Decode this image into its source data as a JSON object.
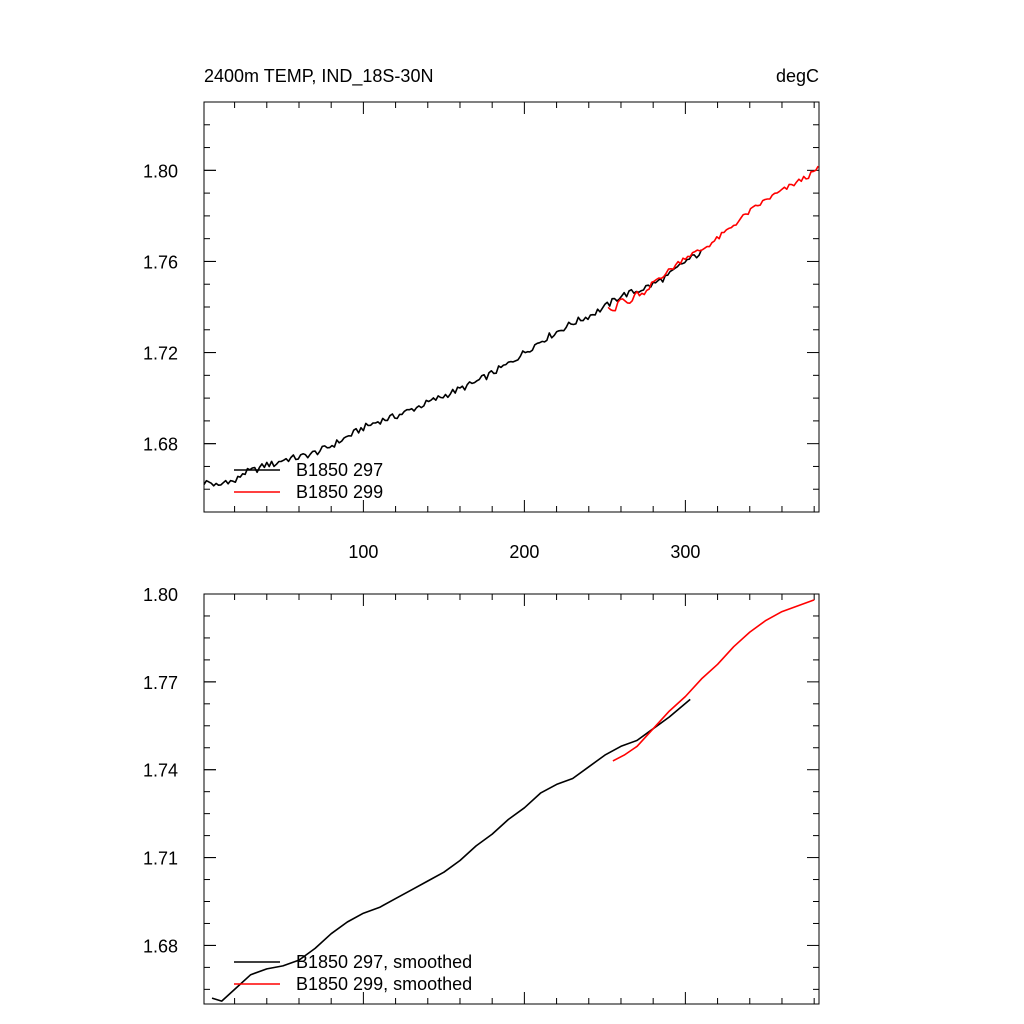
{
  "chart_data": [
    {
      "type": "line",
      "title": "2400m TEMP, IND_18S-30N",
      "units": "degC",
      "xlim": [
        1,
        383
      ],
      "ylim": [
        1.65,
        1.83
      ],
      "x_tick_labels": [
        "100",
        "200",
        "300"
      ],
      "x_ticks": [
        100,
        200,
        300
      ],
      "y_tick_labels": [
        "1.68",
        "1.72",
        "1.76",
        "1.80"
      ],
      "y_ticks": [
        1.68,
        1.72,
        1.76,
        1.8
      ],
      "legend_position": "bottom-left",
      "series": [
        {
          "name": "B1850 297",
          "color": "#000000",
          "x": [
            1,
            5,
            10,
            15,
            20,
            25,
            30,
            35,
            40,
            45,
            50,
            60,
            70,
            80,
            90,
            100,
            110,
            120,
            130,
            140,
            150,
            160,
            170,
            180,
            190,
            200,
            210,
            220,
            230,
            240,
            250,
            260,
            270,
            280,
            290,
            300,
            310
          ],
          "y": [
            1.663,
            1.663,
            1.661,
            1.664,
            1.663,
            1.667,
            1.668,
            1.669,
            1.671,
            1.671,
            1.673,
            1.674,
            1.676,
            1.679,
            1.683,
            1.687,
            1.69,
            1.692,
            1.695,
            1.698,
            1.701,
            1.704,
            1.707,
            1.711,
            1.715,
            1.72,
            1.725,
            1.729,
            1.733,
            1.736,
            1.74,
            1.745,
            1.747,
            1.75,
            1.754,
            1.76,
            1.764
          ],
          "noise": 0.0015
        },
        {
          "name": "B1850 299",
          "color": "#ff0000",
          "x": [
            252,
            256,
            260,
            265,
            270,
            275,
            280,
            290,
            300,
            310,
            320,
            330,
            340,
            350,
            360,
            370,
            380,
            383
          ],
          "y": [
            1.741,
            1.738,
            1.744,
            1.741,
            1.746,
            1.745,
            1.751,
            1.756,
            1.762,
            1.765,
            1.77,
            1.776,
            1.782,
            1.787,
            1.791,
            1.795,
            1.799,
            1.802
          ],
          "noise": 0.0012
        }
      ]
    },
    {
      "type": "line",
      "title": "",
      "xlim": [
        1,
        383
      ],
      "ylim": [
        1.66,
        1.8
      ],
      "x_ticks": [
        100,
        200,
        300
      ],
      "y_tick_labels": [
        "1.68",
        "1.71",
        "1.74",
        "1.77",
        "1.80"
      ],
      "y_ticks": [
        1.68,
        1.71,
        1.74,
        1.77,
        1.8
      ],
      "legend_position": "bottom-left",
      "series": [
        {
          "name": "B1850 297, smoothed",
          "color": "#000000",
          "x": [
            6,
            12,
            20,
            30,
            40,
            50,
            60,
            70,
            80,
            90,
            100,
            110,
            120,
            130,
            140,
            150,
            160,
            170,
            180,
            190,
            200,
            210,
            220,
            230,
            240,
            250,
            260,
            270,
            280,
            290,
            303
          ],
          "y": [
            1.662,
            1.661,
            1.665,
            1.67,
            1.672,
            1.673,
            1.675,
            1.679,
            1.684,
            1.688,
            1.691,
            1.693,
            1.696,
            1.699,
            1.702,
            1.705,
            1.709,
            1.714,
            1.718,
            1.723,
            1.727,
            1.732,
            1.735,
            1.737,
            1.741,
            1.745,
            1.748,
            1.75,
            1.754,
            1.758,
            1.764
          ]
        },
        {
          "name": "B1850 299, smoothed",
          "color": "#ff0000",
          "x": [
            255,
            262,
            270,
            280,
            290,
            300,
            310,
            320,
            330,
            340,
            350,
            360,
            370,
            380
          ],
          "y": [
            1.743,
            1.745,
            1.748,
            1.754,
            1.76,
            1.765,
            1.771,
            1.776,
            1.782,
            1.787,
            1.791,
            1.794,
            1.796,
            1.798
          ]
        }
      ]
    }
  ]
}
